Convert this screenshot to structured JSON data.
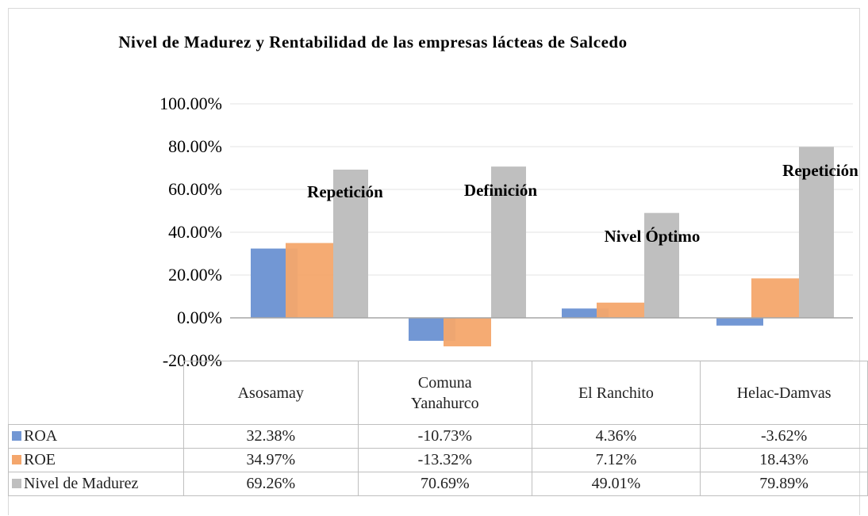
{
  "chart_data": {
    "type": "bar",
    "title": "Nivel de Madurez y Rentabilidad de las empresas lácteas de Salcedo",
    "categories": [
      "Asosamay",
      "Comuna Yanahurco",
      "El Ranchito",
      "Helac-Damvas"
    ],
    "series": [
      {
        "name": "ROA",
        "color": "#7297d4",
        "values": [
          32.38,
          -10.73,
          4.36,
          -3.62
        ],
        "value_labels": [
          "32.38%",
          "-10.73%",
          "4.36%",
          "-3.62%"
        ]
      },
      {
        "name": "ROE",
        "color": "#f4a66c",
        "values": [
          34.97,
          -13.32,
          7.12,
          18.43
        ],
        "value_labels": [
          "34.97%",
          "-13.32%",
          "7.12%",
          "18.43%"
        ]
      },
      {
        "name": "Nivel de Madurez",
        "color": "#bfbfbf",
        "values": [
          69.26,
          70.69,
          49.01,
          79.89
        ],
        "value_labels": [
          "69.26%",
          "70.69%",
          "49.01%",
          "79.89%"
        ]
      }
    ],
    "annotations": [
      "Repetición",
      "Definición",
      "Nivel Óptimo",
      "Repetición"
    ],
    "ylim": [
      -20,
      100
    ],
    "yticks": [
      {
        "value": -20,
        "label": "-20.00%"
      },
      {
        "value": 0,
        "label": "0.00%"
      },
      {
        "value": 20,
        "label": "20.00%"
      },
      {
        "value": 40,
        "label": "40.00%"
      },
      {
        "value": 60,
        "label": "60.00%"
      },
      {
        "value": 80,
        "label": "80.00%"
      },
      {
        "value": 100,
        "label": "100.00%"
      }
    ],
    "grid": true
  }
}
